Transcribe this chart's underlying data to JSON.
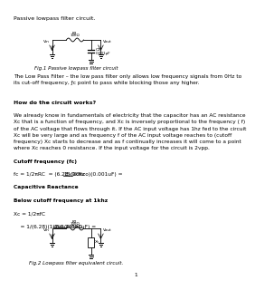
{
  "title": "Passive lowpass filter circuit.",
  "fig1_caption": "Fig.1 Passive lowpass filter circuit",
  "fig2_caption": "Fig.2 Lowpass filter equivalent circuit.",
  "body_text": [
    "The Low Pass Filter – the low pass filter only allows low frequency signals from 0Hz to",
    "its cut-off frequency, ƒc point to pass while blocking those any higher.",
    "",
    "",
    "How do the circuit works?",
    "",
    "We already know in fundamentals of electricity that the capacitor has an AC resistance",
    "Xc that is a function of frequency, and Xc is inversely proportional to the frequency ( f)",
    "of the AC voltage that flows through it. If the AC input voltage has 1hz fed to the circuit",
    "Xc will be very large and as frequency f of the AC input voltage reaches to (cutoff",
    "frequency) Xc starts to decrease and as f continually increases it will come to a point",
    "where Xc reaches 0 resistance. If the input voltage for the circuit is 2vpp.",
    "",
    "Cutoff frequency (fc)",
    "",
    "fc = 1/2πRC  = (6.28)(10kco)(0.001uF) = 15.9kHz",
    "",
    "Capacitive Reactance",
    "",
    "Below cutoff frequency at 1khz",
    "",
    "Xc = 1/2πfC",
    "",
    "    = 1/(6.28)(1khz)(0.001uF) = 159.235kΩ"
  ],
  "page_number": "1",
  "bg_color": "#ffffff",
  "text_color": "#000000",
  "font_size": 4.2,
  "title_font_size": 4.5,
  "caption_font_size": 4.0,
  "heading_font_size": 4.5
}
